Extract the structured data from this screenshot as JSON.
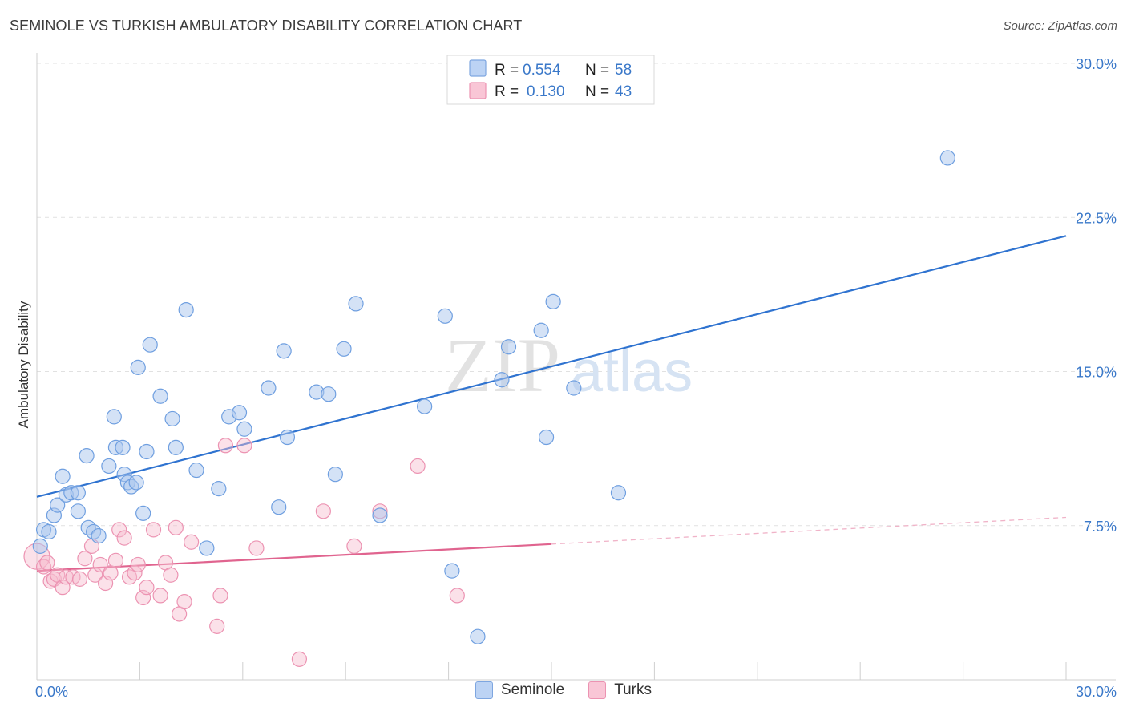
{
  "header": {
    "title": "SEMINOLE VS TURKISH AMBULATORY DISABILITY CORRELATION CHART",
    "source": "Source: ZipAtlas.com"
  },
  "watermark": {
    "zip": "ZIP",
    "atlas": "atlas"
  },
  "legend_top": [
    {
      "r_label": "R =",
      "r_value": "0.554",
      "n_label": "N =",
      "n_value": "58"
    },
    {
      "r_label": "R =",
      "r_value": "0.130",
      "n_label": "N =",
      "n_value": "43"
    }
  ],
  "legend_bottom": [
    {
      "label": "Seminole"
    },
    {
      "label": "Turks"
    }
  ],
  "chart_data": {
    "type": "scatter",
    "title": "SEMINOLE VS TURKISH AMBULATORY DISABILITY CORRELATION CHART",
    "xlabel": "",
    "ylabel": "Ambulatory Disability",
    "xlim": [
      0,
      30
    ],
    "ylim": [
      0,
      30
    ],
    "x_tick_labels": [
      "0.0%",
      "30.0%"
    ],
    "y_ticks": [
      7.5,
      15.0,
      22.5,
      30.0
    ],
    "y_tick_labels": [
      "7.5%",
      "15.0%",
      "22.5%",
      "30.0%"
    ],
    "grid": true,
    "legend_position": "top-center",
    "colors": {
      "Seminole": "#6f9fe0",
      "Turks": "#ec8fb0",
      "seminole_line": "#2f73d0",
      "turks_line": "#e0648f",
      "tick_text": "#3a78c9"
    },
    "series": [
      {
        "name": "Seminole",
        "r": 0.554,
        "n": 58,
        "trend": {
          "x": [
            0,
            30
          ],
          "y": [
            8.9,
            21.6
          ]
        },
        "points": [
          [
            0.2,
            7.3
          ],
          [
            0.35,
            7.2
          ],
          [
            0.5,
            8.0
          ],
          [
            0.6,
            8.5
          ],
          [
            0.75,
            9.9
          ],
          [
            0.85,
            9.0
          ],
          [
            1.0,
            9.1
          ],
          [
            1.2,
            9.1
          ],
          [
            1.2,
            8.2
          ],
          [
            1.45,
            10.9
          ],
          [
            1.5,
            7.4
          ],
          [
            1.65,
            7.2
          ],
          [
            1.8,
            7.0
          ],
          [
            2.1,
            10.4
          ],
          [
            2.25,
            12.8
          ],
          [
            2.3,
            11.3
          ],
          [
            2.5,
            11.3
          ],
          [
            2.55,
            10.0
          ],
          [
            2.65,
            9.6
          ],
          [
            2.75,
            9.4
          ],
          [
            2.9,
            9.6
          ],
          [
            2.95,
            15.2
          ],
          [
            3.1,
            8.1
          ],
          [
            3.2,
            11.1
          ],
          [
            3.3,
            16.3
          ],
          [
            3.6,
            13.8
          ],
          [
            3.95,
            12.7
          ],
          [
            4.05,
            11.3
          ],
          [
            4.35,
            18.0
          ],
          [
            4.65,
            10.2
          ],
          [
            4.95,
            6.4
          ],
          [
            5.3,
            9.3
          ],
          [
            5.6,
            12.8
          ],
          [
            5.9,
            13.0
          ],
          [
            6.05,
            12.2
          ],
          [
            6.75,
            14.2
          ],
          [
            7.05,
            8.4
          ],
          [
            7.2,
            16.0
          ],
          [
            7.3,
            11.8
          ],
          [
            8.15,
            14.0
          ],
          [
            8.5,
            13.9
          ],
          [
            8.7,
            10.0
          ],
          [
            8.95,
            16.1
          ],
          [
            9.3,
            18.3
          ],
          [
            10.0,
            8.0
          ],
          [
            11.3,
            13.3
          ],
          [
            11.9,
            17.7
          ],
          [
            12.1,
            5.3
          ],
          [
            12.85,
            2.1
          ],
          [
            13.55,
            14.6
          ],
          [
            13.75,
            16.2
          ],
          [
            14.7,
            17.0
          ],
          [
            14.85,
            11.8
          ],
          [
            15.05,
            18.4
          ],
          [
            15.65,
            14.2
          ],
          [
            16.95,
            9.1
          ],
          [
            26.55,
            25.4
          ],
          [
            0.1,
            6.5
          ]
        ]
      },
      {
        "name": "Turks",
        "r": 0.13,
        "n": 43,
        "trend": {
          "x": [
            0,
            15
          ],
          "y": [
            5.3,
            6.6
          ]
        },
        "trend_extension": {
          "x": [
            15,
            30
          ],
          "y": [
            6.6,
            7.9
          ]
        },
        "points": [
          [
            0.0,
            6.0
          ],
          [
            0.2,
            5.5
          ],
          [
            0.3,
            5.7
          ],
          [
            0.4,
            4.8
          ],
          [
            0.5,
            4.9
          ],
          [
            0.6,
            5.1
          ],
          [
            0.75,
            4.5
          ],
          [
            0.85,
            5.0
          ],
          [
            1.05,
            5.0
          ],
          [
            1.25,
            4.9
          ],
          [
            1.4,
            5.9
          ],
          [
            1.6,
            6.5
          ],
          [
            1.7,
            5.1
          ],
          [
            1.85,
            5.6
          ],
          [
            2.0,
            4.7
          ],
          [
            2.15,
            5.2
          ],
          [
            2.3,
            5.8
          ],
          [
            2.4,
            7.3
          ],
          [
            2.55,
            6.9
          ],
          [
            2.7,
            5.0
          ],
          [
            2.85,
            5.2
          ],
          [
            2.95,
            5.6
          ],
          [
            3.1,
            4.0
          ],
          [
            3.2,
            4.5
          ],
          [
            3.4,
            7.3
          ],
          [
            3.6,
            4.1
          ],
          [
            3.75,
            5.7
          ],
          [
            3.9,
            5.1
          ],
          [
            4.05,
            7.4
          ],
          [
            4.15,
            3.2
          ],
          [
            4.3,
            3.8
          ],
          [
            4.5,
            6.7
          ],
          [
            5.25,
            2.6
          ],
          [
            5.35,
            4.1
          ],
          [
            5.5,
            11.4
          ],
          [
            6.05,
            11.4
          ],
          [
            6.4,
            6.4
          ],
          [
            7.65,
            1.0
          ],
          [
            8.35,
            8.2
          ],
          [
            9.25,
            6.5
          ],
          [
            10.0,
            8.2
          ],
          [
            11.1,
            10.4
          ],
          [
            12.25,
            4.1
          ]
        ]
      }
    ]
  }
}
